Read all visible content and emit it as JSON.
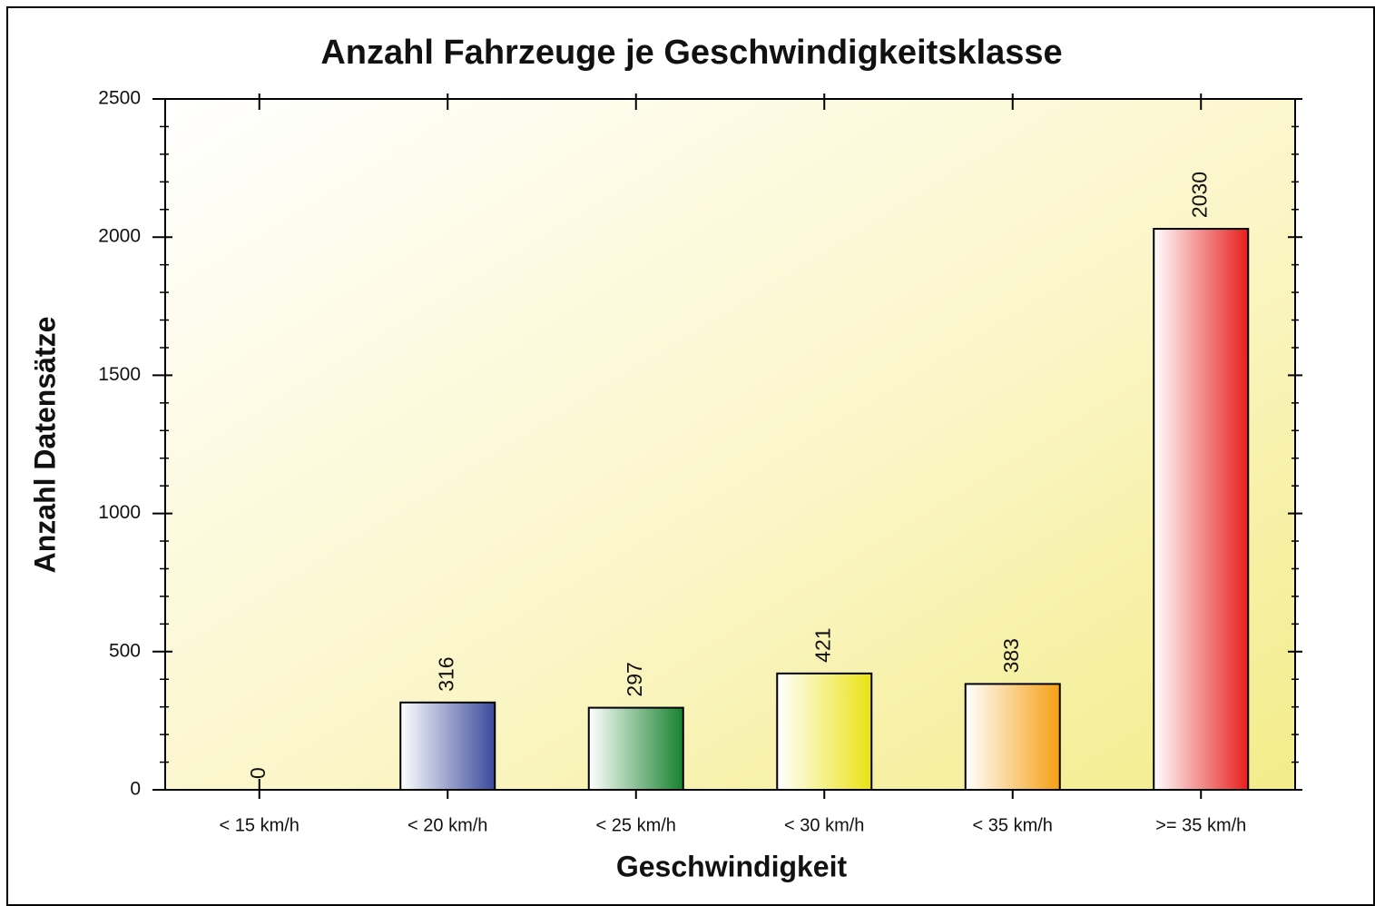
{
  "chart_data": {
    "type": "bar",
    "title": "Anzahl Fahrzeuge je Geschwindigkeitsklasse",
    "x_label": "Geschwindigkeit",
    "y_label": "Anzahl Datensätze",
    "categories": [
      "< 15 km/h",
      "< 20 km/h",
      "< 25 km/h",
      "< 30 km/h",
      "< 35 km/h",
      ">= 35 km/h"
    ],
    "values": [
      0,
      316,
      297,
      421,
      383,
      2030
    ],
    "colors": [
      "#909090",
      "#3a4a9c",
      "#17822e",
      "#eae312",
      "#f5a013",
      "#e81e1e"
    ],
    "ylim": [
      0,
      2500
    ],
    "yticks": [
      0,
      500,
      1000,
      1500,
      2000,
      2500
    ]
  }
}
